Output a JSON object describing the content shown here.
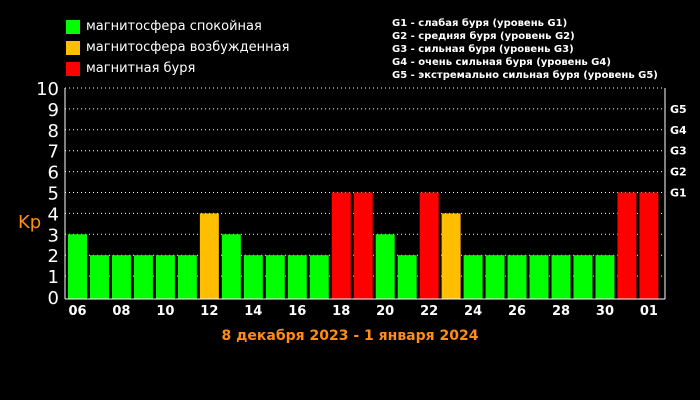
{
  "legend": [
    {
      "label": "магнитосфера спокойная",
      "color": "#00ff00"
    },
    {
      "label": "магнитосфера возбужденная",
      "color": "#ffbf00"
    },
    {
      "label": "магнитная буря",
      "color": "#ff0000"
    }
  ],
  "storm_levels": [
    "G1 - слабая буря (уровень G1)",
    "G2 - средняя буря (уровень G2)",
    "G3 - сильная буря (уровень G3)",
    "G4 - очень сильная буря (уровень G4)",
    "G5 - экстремально сильная буря (уровень G5)"
  ],
  "chart_data": {
    "type": "bar",
    "title": "",
    "xlabel": "8 декабря 2023 - 1 января 2024",
    "ylabel": "Kp",
    "ylim": [
      0,
      10
    ],
    "yticks": [
      "0",
      "1",
      "2",
      "3",
      "4",
      "5",
      "6",
      "7",
      "8",
      "9",
      "10"
    ],
    "right_ticks": [
      {
        "label": "G1",
        "value": 5
      },
      {
        "label": "G2",
        "value": 6
      },
      {
        "label": "G3",
        "value": 7
      },
      {
        "label": "G4",
        "value": 8
      },
      {
        "label": "G5",
        "value": 9
      }
    ],
    "x_tick_labels": [
      "06",
      "08",
      "10",
      "12",
      "14",
      "16",
      "18",
      "20",
      "22",
      "24",
      "26",
      "28",
      "30",
      "01"
    ],
    "values": [
      3,
      2,
      2,
      2,
      2,
      2,
      4,
      3,
      2,
      2,
      2,
      2,
      5,
      5,
      3,
      2,
      5,
      4,
      2,
      2,
      2,
      2,
      2,
      2,
      2,
      5,
      5
    ],
    "colors": {
      "quiet": "#00ff00",
      "active": "#ffbf00",
      "storm": "#ff0000"
    },
    "grid": true
  }
}
